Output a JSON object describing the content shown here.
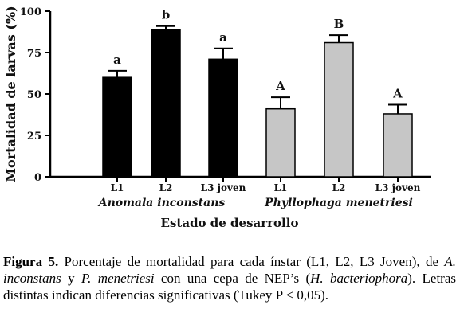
{
  "chart_data": {
    "type": "bar",
    "ylabel": "Mortalidad de larvas (%)",
    "xlabel": "Estado de desarrollo",
    "ylim": [
      0,
      100
    ],
    "yticks": [
      0,
      25,
      50,
      75,
      100
    ],
    "error_bars": true,
    "grid": false,
    "groups": [
      {
        "name": "Anomala inconstans",
        "color": "#000000",
        "bars": [
          {
            "category": "L1",
            "value": 60,
            "error": 4,
            "letter": "a"
          },
          {
            "category": "L2",
            "value": 89,
            "error": 2,
            "letter": "b"
          },
          {
            "category": "L3 joven",
            "value": 71,
            "error": 6.5,
            "letter": "a"
          }
        ]
      },
      {
        "name": "Phyllophaga menetriesi",
        "color": "#c6c6c6",
        "bars": [
          {
            "category": "L1",
            "value": 41,
            "error": 7,
            "letter": "A"
          },
          {
            "category": "L2",
            "value": 81,
            "error": 4.5,
            "letter": "B"
          },
          {
            "category": "L3 joven",
            "value": 38,
            "error": 5.5,
            "letter": "A"
          }
        ]
      }
    ]
  },
  "caption": {
    "label": "Figura 5.",
    "t1": " Porcentaje de mortalidad para cada ínstar (L1, L2, L3 Joven), de ",
    "i1": "A. inconstans",
    "t2": " y ",
    "i2": "P. menetriesi",
    "t3": " con una cepa de NEP’s (",
    "i3": "H. bacteriophora",
    "t4": "). Letras distintas indican diferencias significativas (Tukey P ≤ 0,05)."
  }
}
